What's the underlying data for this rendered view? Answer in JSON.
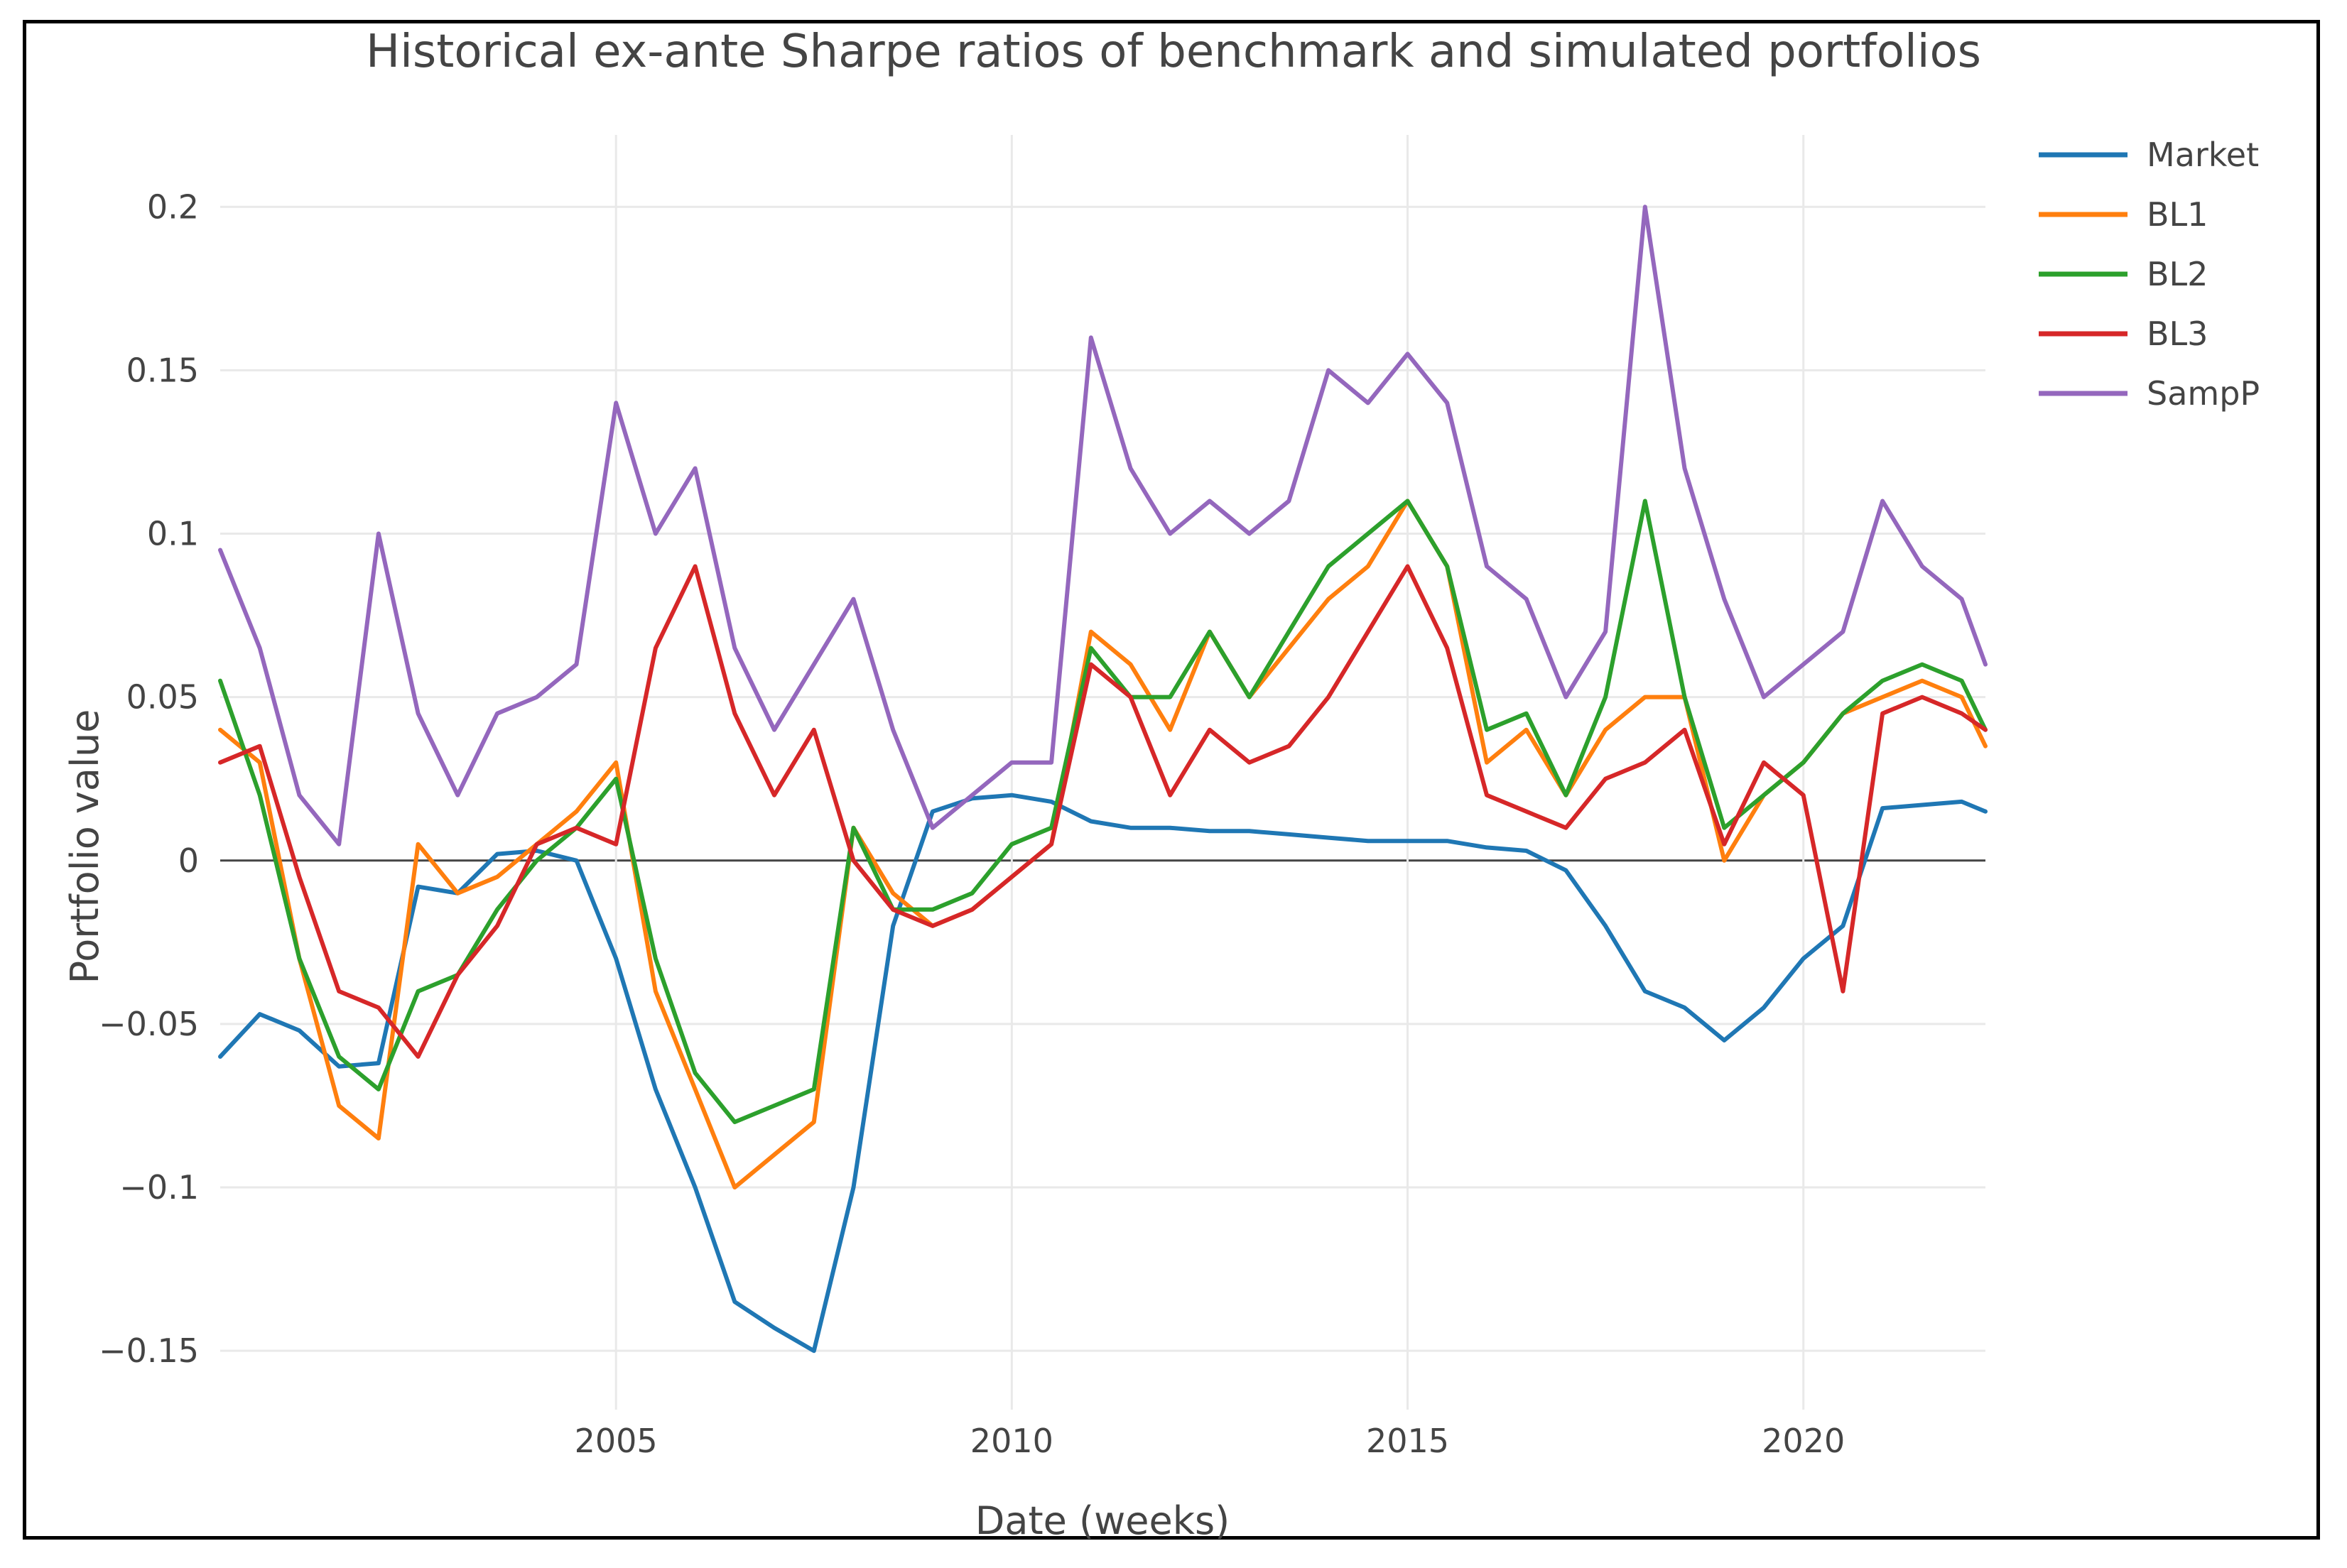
{
  "chart_data": {
    "type": "line",
    "title": "Historical ex-ante Sharpe ratios of benchmark and simulated portfolios",
    "xlabel": "Date (weeks)",
    "ylabel": "Portfolio value",
    "xlim": [
      2000.0,
      2022.3
    ],
    "ylim": [
      -0.168,
      0.222
    ],
    "x_ticks": [
      2005,
      2010,
      2015,
      2020
    ],
    "x_tick_labels": [
      "2005",
      "2010",
      "2015",
      "2020"
    ],
    "y_ticks": [
      -0.15,
      -0.1,
      -0.05,
      0,
      0.05,
      0.1,
      0.15,
      0.2
    ],
    "y_tick_labels": [
      "−0.15",
      "−0.1",
      "−0.05",
      "0",
      "0.05",
      "0.1",
      "0.15",
      "0.2"
    ],
    "grid": true,
    "legend_position": "top-right",
    "x": [
      2000.0,
      2000.5,
      2001.0,
      2001.5,
      2002.0,
      2002.5,
      2003.0,
      2003.5,
      2004.0,
      2004.5,
      2005.0,
      2005.5,
      2006.0,
      2006.5,
      2007.0,
      2007.5,
      2008.0,
      2008.5,
      2009.0,
      2009.5,
      2010.0,
      2010.5,
      2011.0,
      2011.5,
      2012.0,
      2012.5,
      2013.0,
      2013.5,
      2014.0,
      2014.5,
      2015.0,
      2015.5,
      2016.0,
      2016.5,
      2017.0,
      2017.5,
      2018.0,
      2018.5,
      2019.0,
      2019.5,
      2020.0,
      2020.5,
      2021.0,
      2021.5,
      2022.0,
      2022.3
    ],
    "series": [
      {
        "name": "Market",
        "color": "#1f77b4",
        "values": [
          -0.06,
          -0.047,
          -0.052,
          -0.063,
          -0.062,
          -0.008,
          -0.01,
          0.002,
          0.003,
          0.0,
          -0.03,
          -0.07,
          -0.1,
          -0.135,
          -0.143,
          -0.15,
          -0.1,
          -0.02,
          0.015,
          0.019,
          0.02,
          0.018,
          0.012,
          0.01,
          0.01,
          0.009,
          0.009,
          0.008,
          0.007,
          0.006,
          0.006,
          0.006,
          0.004,
          0.003,
          -0.003,
          -0.02,
          -0.04,
          -0.045,
          -0.055,
          -0.045,
          -0.03,
          -0.02,
          0.016,
          0.017,
          0.018,
          0.015
        ]
      },
      {
        "name": "BL1",
        "color": "#ff7f0e",
        "values": [
          0.04,
          0.03,
          -0.03,
          -0.075,
          -0.085,
          0.005,
          -0.01,
          -0.005,
          0.005,
          0.015,
          0.03,
          -0.04,
          -0.07,
          -0.1,
          -0.09,
          -0.08,
          0.01,
          -0.01,
          -0.02,
          -0.015,
          -0.005,
          0.005,
          0.07,
          0.06,
          0.04,
          0.07,
          0.05,
          0.065,
          0.08,
          0.09,
          0.11,
          0.09,
          0.03,
          0.04,
          0.02,
          0.04,
          0.05,
          0.05,
          0.0,
          0.02,
          0.03,
          0.045,
          0.05,
          0.055,
          0.05,
          0.035
        ]
      },
      {
        "name": "BL2",
        "color": "#2ca02c",
        "values": [
          0.055,
          0.02,
          -0.03,
          -0.06,
          -0.07,
          -0.04,
          -0.035,
          -0.015,
          0.0,
          0.01,
          0.025,
          -0.03,
          -0.065,
          -0.08,
          -0.075,
          -0.07,
          0.01,
          -0.015,
          -0.015,
          -0.01,
          0.005,
          0.01,
          0.065,
          0.05,
          0.05,
          0.07,
          0.05,
          0.07,
          0.09,
          0.1,
          0.11,
          0.09,
          0.04,
          0.045,
          0.02,
          0.05,
          0.11,
          0.05,
          0.01,
          0.02,
          0.03,
          0.045,
          0.055,
          0.06,
          0.055,
          0.04
        ]
      },
      {
        "name": "BL3",
        "color": "#d62728",
        "values": [
          0.03,
          0.035,
          -0.005,
          -0.04,
          -0.045,
          -0.06,
          -0.035,
          -0.02,
          0.005,
          0.01,
          0.005,
          0.065,
          0.09,
          0.045,
          0.02,
          0.04,
          0.0,
          -0.015,
          -0.02,
          -0.015,
          -0.005,
          0.005,
          0.06,
          0.05,
          0.02,
          0.04,
          0.03,
          0.035,
          0.05,
          0.07,
          0.09,
          0.065,
          0.02,
          0.015,
          0.01,
          0.025,
          0.03,
          0.04,
          0.005,
          0.03,
          0.02,
          -0.04,
          0.045,
          0.05,
          0.045,
          0.04
        ]
      },
      {
        "name": "SampP",
        "color": "#9467bd",
        "values": [
          0.095,
          0.065,
          0.02,
          0.005,
          0.1,
          0.045,
          0.02,
          0.045,
          0.05,
          0.06,
          0.14,
          0.1,
          0.12,
          0.065,
          0.04,
          0.06,
          0.08,
          0.04,
          0.01,
          0.02,
          0.03,
          0.03,
          0.16,
          0.12,
          0.1,
          0.11,
          0.1,
          0.11,
          0.15,
          0.14,
          0.155,
          0.14,
          0.09,
          0.08,
          0.05,
          0.07,
          0.2,
          0.12,
          0.08,
          0.05,
          0.06,
          0.07,
          0.11,
          0.09,
          0.08,
          0.06
        ]
      }
    ]
  }
}
